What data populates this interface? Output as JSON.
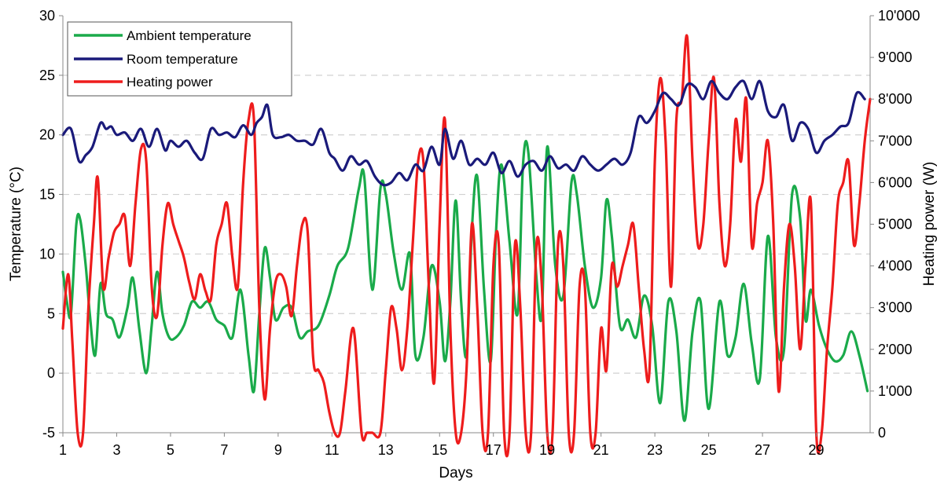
{
  "chart_data": {
    "type": "line",
    "xlabel": "Days",
    "ylabel_left": "Temperature (°C)",
    "ylabel_right": "Heating power (W)",
    "xlim": [
      1,
      31
    ],
    "ylim_left": [
      -5,
      30
    ],
    "ylim_right": [
      0,
      10000
    ],
    "x_ticks": [
      1,
      3,
      5,
      7,
      9,
      11,
      13,
      15,
      17,
      19,
      21,
      23,
      25,
      27,
      29
    ],
    "x_tick_labels": [
      "1",
      "3",
      "5",
      "7",
      "9",
      "11",
      "13",
      "15",
      "17",
      "19",
      "21",
      "23",
      "25",
      "27",
      "29"
    ],
    "y_left_ticks": [
      -5,
      0,
      5,
      10,
      15,
      20,
      25,
      30
    ],
    "y_left_tick_labels": [
      "-5",
      "0",
      "5",
      "10",
      "15",
      "20",
      "25",
      "30"
    ],
    "y_right_ticks": [
      0,
      1000,
      2000,
      3000,
      4000,
      5000,
      6000,
      7000,
      8000,
      9000,
      10000
    ],
    "y_right_tick_labels": [
      "0",
      "1'000",
      "2'000",
      "3'000",
      "4'000",
      "5'000",
      "6'000",
      "7'000",
      "8'000",
      "9'000",
      "10'000"
    ],
    "grid": "horizontal dashed",
    "legend_position": "top-left",
    "series": [
      {
        "name": "Ambient temperature",
        "axis": "left",
        "color": "#1aaa4a",
        "x": [
          1.0,
          1.15,
          1.3,
          1.5,
          1.65,
          1.85,
          2.0,
          2.2,
          2.4,
          2.6,
          2.85,
          3.1,
          3.4,
          3.6,
          3.85,
          4.1,
          4.3,
          4.5,
          4.7,
          4.95,
          5.2,
          5.5,
          5.8,
          6.1,
          6.4,
          6.7,
          7.0,
          7.3,
          7.6,
          7.9,
          8.1,
          8.3,
          8.5,
          8.7,
          8.9,
          9.2,
          9.5,
          9.8,
          10.1,
          10.5,
          10.9,
          11.2,
          11.6,
          12.0,
          12.2,
          12.5,
          12.8,
          13.0,
          13.3,
          13.6,
          13.9,
          14.1,
          14.4,
          14.7,
          15.0,
          15.2,
          15.4,
          15.6,
          15.8,
          16.0,
          16.2,
          16.4,
          16.65,
          16.9,
          17.1,
          17.3,
          17.6,
          17.9,
          18.1,
          18.3,
          18.6,
          18.8,
          19.0,
          19.3,
          19.6,
          19.9,
          20.1,
          20.4,
          20.7,
          21.0,
          21.2,
          21.4,
          21.7,
          22.0,
          22.3,
          22.6,
          22.9,
          23.2,
          23.5,
          23.8,
          24.1,
          24.4,
          24.7,
          25.0,
          25.4,
          25.7,
          26.0,
          26.3,
          26.6,
          26.9,
          27.2,
          27.5,
          27.8,
          28.1,
          28.4,
          28.6,
          28.8,
          29.1,
          29.4,
          29.7,
          30.0,
          30.3,
          30.6,
          30.9
        ],
        "values": [
          8.5,
          6.0,
          5.0,
          12.5,
          12.8,
          9.0,
          5.0,
          1.5,
          7.5,
          5.0,
          4.5,
          3.0,
          5.5,
          8.0,
          3.5,
          0.0,
          4.0,
          8.5,
          5.0,
          3.0,
          3.0,
          4.0,
          6.0,
          5.5,
          6.0,
          4.5,
          4.0,
          3.0,
          7.0,
          1.5,
          -1.5,
          5.0,
          10.5,
          8.0,
          4.5,
          5.5,
          5.5,
          3.0,
          3.5,
          4.0,
          6.5,
          9.0,
          10.5,
          15.5,
          16.5,
          7.0,
          15.5,
          15.0,
          10.0,
          7.0,
          10.0,
          1.5,
          3.0,
          9.0,
          6.0,
          1.0,
          6.0,
          14.5,
          6.0,
          1.5,
          12.0,
          16.5,
          7.0,
          1.0,
          12.0,
          17.5,
          11.0,
          5.0,
          17.5,
          18.5,
          8.0,
          5.0,
          19.0,
          9.0,
          6.5,
          16.0,
          15.0,
          9.0,
          5.5,
          8.0,
          14.5,
          11.5,
          4.0,
          4.5,
          3.0,
          6.5,
          4.0,
          -2.5,
          6.0,
          3.5,
          -4.0,
          3.5,
          6.0,
          -3.0,
          6.0,
          1.5,
          3.0,
          7.5,
          2.5,
          -0.5,
          11.5,
          3.0,
          2.0,
          15.0,
          13.0,
          4.5,
          7.0,
          4.0,
          2.0,
          1.0,
          1.5,
          3.5,
          1.5,
          -1.5
        ]
      },
      {
        "name": "Room temperature",
        "axis": "left",
        "color": "#1a1a7a",
        "x": [
          1.0,
          1.3,
          1.6,
          1.85,
          2.1,
          2.4,
          2.6,
          2.8,
          3.0,
          3.3,
          3.6,
          3.9,
          4.2,
          4.5,
          4.8,
          5.0,
          5.3,
          5.6,
          5.9,
          6.2,
          6.5,
          6.8,
          7.1,
          7.4,
          7.7,
          8.0,
          8.2,
          8.4,
          8.6,
          8.8,
          9.1,
          9.4,
          9.7,
          10.0,
          10.3,
          10.6,
          10.9,
          11.1,
          11.4,
          11.7,
          12.0,
          12.3,
          12.6,
          12.9,
          13.2,
          13.5,
          13.8,
          14.1,
          14.4,
          14.7,
          15.0,
          15.2,
          15.5,
          15.8,
          16.1,
          16.4,
          16.7,
          17.0,
          17.3,
          17.6,
          17.9,
          18.2,
          18.5,
          18.8,
          19.1,
          19.4,
          19.7,
          20.0,
          20.3,
          20.6,
          20.9,
          21.2,
          21.5,
          21.8,
          22.1,
          22.4,
          22.7,
          23.0,
          23.3,
          23.6,
          23.9,
          24.2,
          24.5,
          24.8,
          25.1,
          25.4,
          25.7,
          26.0,
          26.3,
          26.6,
          26.9,
          27.2,
          27.5,
          27.8,
          28.1,
          28.4,
          28.7,
          29.0,
          29.3,
          29.6,
          29.9,
          30.2,
          30.5,
          30.8
        ],
        "values": [
          20.0,
          20.5,
          17.8,
          18.3,
          19.0,
          21.0,
          20.5,
          20.7,
          20.0,
          20.2,
          19.5,
          20.5,
          19.0,
          20.5,
          18.7,
          19.5,
          19.0,
          19.5,
          18.5,
          18.0,
          20.5,
          20.0,
          20.2,
          19.8,
          20.8,
          20.0,
          21.0,
          21.5,
          22.5,
          20.0,
          19.8,
          20.0,
          19.5,
          19.5,
          19.2,
          20.5,
          18.5,
          18.0,
          17.0,
          18.2,
          17.5,
          17.8,
          16.5,
          15.8,
          16.0,
          16.8,
          16.2,
          17.5,
          17.0,
          19.0,
          17.5,
          20.5,
          18.0,
          19.5,
          17.5,
          18.0,
          17.5,
          18.5,
          16.8,
          17.8,
          16.5,
          17.5,
          17.8,
          17.0,
          18.2,
          17.2,
          17.5,
          17.0,
          18.2,
          17.5,
          17.0,
          17.5,
          18.0,
          17.5,
          18.5,
          21.5,
          21.0,
          22.0,
          23.5,
          23.0,
          22.5,
          24.2,
          24.0,
          23.0,
          24.5,
          23.5,
          23.0,
          24.0,
          24.5,
          23.0,
          24.5,
          22.0,
          21.5,
          22.5,
          19.5,
          21.0,
          20.5,
          18.5,
          19.5,
          20.0,
          20.7,
          21.0,
          23.5,
          23.0
        ]
      },
      {
        "name": "Heating power",
        "axis": "right",
        "color": "#ee1c1c",
        "x": [
          1.0,
          1.2,
          1.35,
          1.55,
          1.75,
          1.95,
          2.15,
          2.3,
          2.5,
          2.7,
          2.9,
          3.1,
          3.3,
          3.5,
          3.7,
          3.9,
          4.1,
          4.3,
          4.5,
          4.7,
          4.9,
          5.1,
          5.3,
          5.5,
          5.7,
          5.9,
          6.1,
          6.3,
          6.5,
          6.7,
          6.9,
          7.1,
          7.3,
          7.5,
          7.7,
          7.9,
          8.1,
          8.3,
          8.5,
          8.7,
          8.9,
          9.1,
          9.3,
          9.5,
          9.7,
          9.9,
          10.1,
          10.3,
          10.5,
          10.7,
          10.9,
          11.1,
          11.3,
          11.5,
          11.8,
          12.1,
          12.3,
          12.5,
          12.8,
          13.0,
          13.2,
          13.4,
          13.6,
          13.8,
          14.0,
          14.2,
          14.4,
          14.6,
          14.8,
          15.0,
          15.2,
          15.4,
          15.6,
          15.8,
          16.0,
          16.2,
          16.4,
          16.6,
          16.8,
          17.0,
          17.2,
          17.4,
          17.6,
          17.8,
          18.0,
          18.2,
          18.4,
          18.6,
          18.8,
          19.0,
          19.2,
          19.4,
          19.6,
          19.8,
          20.0,
          20.2,
          20.4,
          20.6,
          20.8,
          21.0,
          21.2,
          21.4,
          21.6,
          21.8,
          22.0,
          22.2,
          22.4,
          22.6,
          22.8,
          23.0,
          23.2,
          23.4,
          23.6,
          23.8,
          24.0,
          24.2,
          24.4,
          24.6,
          24.8,
          25.0,
          25.2,
          25.4,
          25.6,
          25.8,
          26.0,
          26.2,
          26.4,
          26.6,
          26.8,
          27.0,
          27.2,
          27.4,
          27.6,
          27.8,
          28.0,
          28.2,
          28.4,
          28.6,
          28.8,
          29.0,
          29.2,
          29.4,
          29.6,
          29.8,
          30.0,
          30.2,
          30.4,
          30.6,
          30.8,
          31.0
        ],
        "values": [
          2500,
          3800,
          2200,
          0,
          0,
          3000,
          5000,
          6100,
          3500,
          4200,
          4800,
          5000,
          5200,
          4000,
          5500,
          6800,
          6500,
          3500,
          2800,
          4500,
          5500,
          5000,
          4600,
          4200,
          3600,
          3200,
          3800,
          3400,
          3200,
          4500,
          5000,
          5500,
          4200,
          3500,
          6000,
          7500,
          7500,
          3000,
          800,
          2500,
          3600,
          3800,
          3500,
          2800,
          4000,
          5000,
          4800,
          1800,
          1500,
          1200,
          500,
          0,
          0,
          1000,
          2500,
          0,
          0,
          0,
          0,
          1500,
          3000,
          2500,
          1500,
          2500,
          4500,
          6500,
          6500,
          3500,
          1200,
          5000,
          7500,
          2500,
          0,
          0,
          1500,
          5000,
          3000,
          0,
          0,
          4000,
          4500,
          0,
          0,
          4500,
          3000,
          0,
          0,
          4500,
          3500,
          0,
          0,
          4500,
          4000,
          0,
          0,
          3500,
          3500,
          0,
          0,
          2500,
          1500,
          4000,
          3500,
          4000,
          4500,
          5000,
          3500,
          2000,
          1500,
          6500,
          8500,
          7000,
          3500,
          7500,
          8000,
          9500,
          6500,
          4500,
          5000,
          7000,
          8500,
          5500,
          4000,
          5000,
          7500,
          6500,
          8000,
          4500,
          5500,
          6000,
          7000,
          5000,
          1000,
          3500,
          5000,
          4000,
          2000,
          4000,
          5500,
          0,
          0,
          2000,
          3500,
          5500,
          6000,
          6500,
          4500,
          5500,
          7000,
          8000
        ]
      }
    ]
  }
}
